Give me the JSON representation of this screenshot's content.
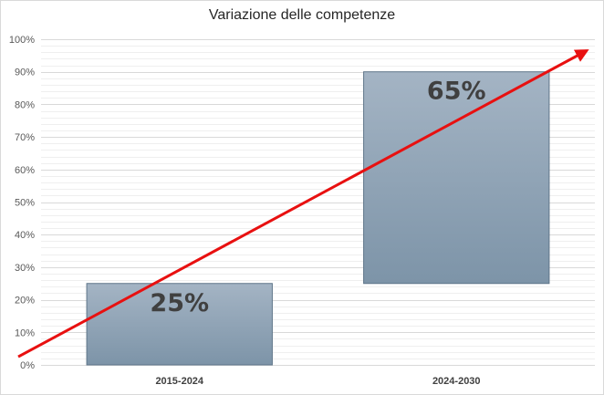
{
  "chart_data": {
    "type": "bar",
    "subtype": "floating-waterfall",
    "title": "Variazione delle competenze",
    "categories": [
      "2015-2024",
      "2024-2030"
    ],
    "bars": [
      {
        "category": "2015-2024",
        "start": 0,
        "end": 25,
        "label": "25%"
      },
      {
        "category": "2024-2030",
        "start": 25,
        "end": 90,
        "label": "65%"
      }
    ],
    "ylim": [
      0,
      100
    ],
    "yticks": [
      "0%",
      "10%",
      "20%",
      "30%",
      "40%",
      "50%",
      "60%",
      "70%",
      "80%",
      "90%",
      "100%"
    ],
    "grid": true,
    "legend": "none",
    "trend_arrow": {
      "from_percent": 2.5,
      "to_percent": 96.5,
      "color": "#e81010"
    },
    "colors": {
      "bar_top": "#a4b4c4",
      "bar_bottom": "#7d94a8",
      "bar_border": "#5f7589",
      "grid": "#e3e3e3"
    }
  }
}
